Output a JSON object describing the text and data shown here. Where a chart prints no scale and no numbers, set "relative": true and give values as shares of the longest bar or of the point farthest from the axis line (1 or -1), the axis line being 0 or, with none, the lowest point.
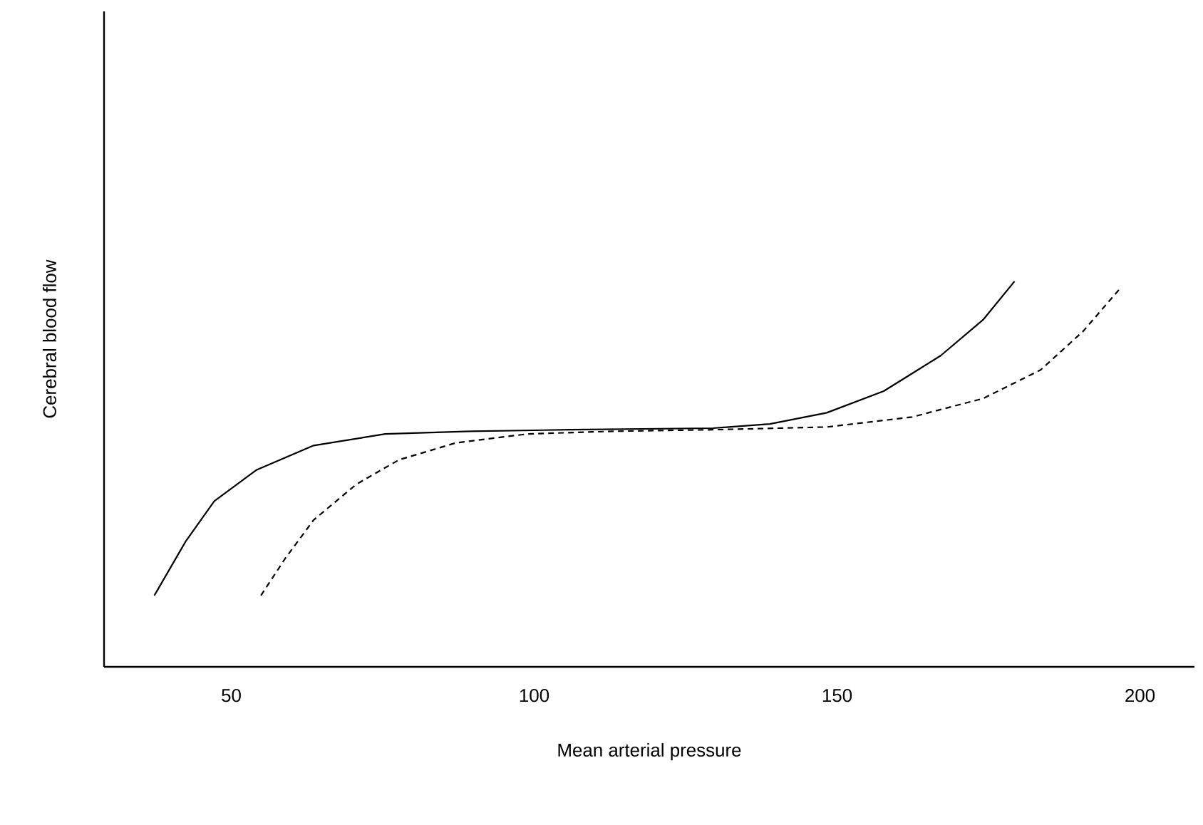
{
  "chart_data": {
    "type": "line",
    "relative": true,
    "xlabel": "Mean arterial pressure",
    "ylabel": "Cerebral blood flow",
    "xlim": [
      29,
      209
    ],
    "xticks": [
      50,
      100,
      150,
      200
    ],
    "marker": "none",
    "series": [
      {
        "color": "#000000",
        "line_style": "solid",
        "x": [
          37.3,
          42.5,
          47.2,
          54.2,
          63.6,
          75.4,
          89.5,
          106,
          129.5,
          138.9,
          148.3,
          157.7,
          167.1,
          174.1,
          179.3
        ],
        "values": [
          0.185,
          0.326,
          0.43,
          0.511,
          0.574,
          0.604,
          0.611,
          0.615,
          0.619,
          0.63,
          0.659,
          0.715,
          0.807,
          0.9,
          1
        ]
      },
      {
        "color": "#000000",
        "line_style": "dashed",
        "x": [
          54.9,
          58.9,
          63.6,
          70.7,
          77.7,
          87.1,
          98.9,
          113,
          129.5,
          148.3,
          162.4,
          174.1,
          183.6,
          190.6,
          196.7
        ],
        "values": [
          0.185,
          0.281,
          0.381,
          0.474,
          0.537,
          0.581,
          0.604,
          0.611,
          0.615,
          0.622,
          0.648,
          0.696,
          0.77,
          0.87,
          0.981
        ]
      }
    ]
  }
}
